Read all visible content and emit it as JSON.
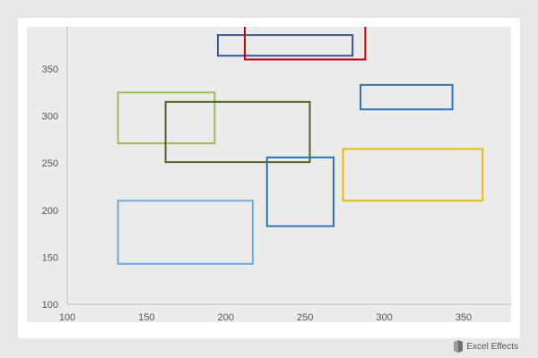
{
  "brand": {
    "text": "Excel Effects",
    "icon": "excel-effects-logo-icon"
  },
  "chart_data": {
    "type": "rectangles",
    "title": "",
    "xlabel": "",
    "ylabel": "",
    "xlim": [
      100,
      380
    ],
    "ylim": [
      100,
      390
    ],
    "x_ticks": [
      100,
      150,
      200,
      250,
      300,
      350
    ],
    "y_ticks": [
      100,
      150,
      200,
      250,
      300,
      350
    ],
    "grid": false,
    "plot_background": "#ebebeb",
    "axis_color": "#bfbfbf",
    "rects": [
      {
        "x1": 195,
        "x2": 280,
        "y1": 364,
        "y2": 386,
        "color": "#2f5597"
      },
      {
        "x1": 212,
        "x2": 288,
        "y1": 360,
        "y2": 397,
        "color": "#c00000"
      },
      {
        "x1": 285,
        "x2": 343,
        "y1": 307,
        "y2": 333,
        "color": "#2e75b6"
      },
      {
        "x1": 132,
        "x2": 193,
        "y1": 271,
        "y2": 325,
        "color": "#9bbb59"
      },
      {
        "x1": 162,
        "x2": 253,
        "y1": 251,
        "y2": 315,
        "color": "#4f6228"
      },
      {
        "x1": 226,
        "x2": 268,
        "y1": 183,
        "y2": 256,
        "color": "#2e75b6"
      },
      {
        "x1": 274,
        "x2": 362,
        "y1": 210,
        "y2": 265,
        "color": "#e2c000"
      },
      {
        "x1": 132,
        "x2": 217,
        "y1": 143,
        "y2": 210,
        "color": "#6fa8dc"
      }
    ]
  }
}
